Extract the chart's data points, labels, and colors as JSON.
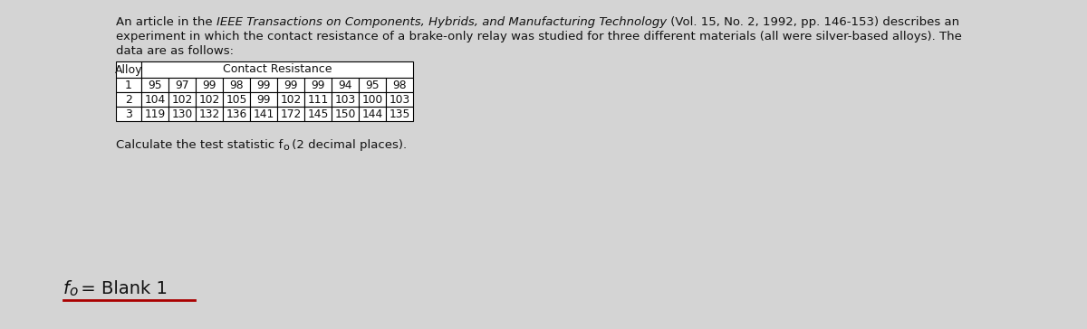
{
  "background_color": "#d4d4d4",
  "text_color": "#111111",
  "line1_normal1": "An article in the ",
  "line1_italic": "IEEE Transactions on Components, Hybrids, and Manufacturing Technology",
  "line1_normal2": " (Vol. 15, No. 2, 1992, pp. 146-153) describes an",
  "line2": "experiment in which the contact resistance of a brake-only relay was studied for three different materials (all were silver-based alloys). The",
  "line3": "data are as follows:",
  "alloy1": [
    95,
    97,
    99,
    98,
    99,
    99,
    99,
    94,
    95,
    98
  ],
  "alloy2": [
    104,
    102,
    102,
    105,
    99,
    102,
    111,
    103,
    100,
    103
  ],
  "alloy3": [
    119,
    130,
    132,
    136,
    141,
    172,
    145,
    150,
    144,
    135
  ],
  "font_size_body": 9.5,
  "font_size_table": 9.0,
  "font_size_answer": 14,
  "underline_color": "#aa0000"
}
